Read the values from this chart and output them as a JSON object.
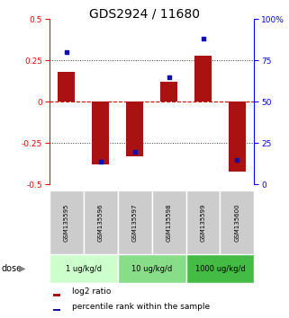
{
  "title": "GDS2924 / 11680",
  "samples": [
    "GSM135595",
    "GSM135596",
    "GSM135597",
    "GSM135598",
    "GSM135599",
    "GSM135600"
  ],
  "log2_ratio": [
    0.18,
    -0.38,
    -0.33,
    0.12,
    0.28,
    -0.42
  ],
  "percentile": [
    80,
    14,
    20,
    65,
    88,
    15
  ],
  "ylim_left": [
    -0.5,
    0.5
  ],
  "ylim_right": [
    0,
    100
  ],
  "yticks_left": [
    -0.5,
    -0.25,
    0,
    0.25,
    0.5
  ],
  "ytick_labels_left": [
    "-0.5",
    "-0.25",
    "0",
    "0.25",
    "0.5"
  ],
  "yticks_right": [
    0,
    25,
    50,
    75,
    100
  ],
  "ytick_labels_right": [
    "0",
    "25",
    "50",
    "75",
    "100%"
  ],
  "bar_color": "#AA1111",
  "dot_color": "#1111AA",
  "dose_groups": [
    {
      "label": "1 ug/kg/d",
      "samples": [
        0,
        1
      ],
      "color": "#ccffcc"
    },
    {
      "label": "10 ug/kg/d",
      "samples": [
        2,
        3
      ],
      "color": "#88dd88"
    },
    {
      "label": "1000 ug/kg/d",
      "samples": [
        4,
        5
      ],
      "color": "#44bb44"
    }
  ],
  "dose_label": "dose",
  "legend_log2": "log2 ratio",
  "legend_pct": "percentile rank within the sample",
  "bar_color_r": "#AA1111",
  "dot_color_b": "#1111AA",
  "zero_line_color": "#cc0000",
  "grid_dotted_color": "#333333",
  "bg_sample_row": "#cccccc",
  "title_fontsize": 10,
  "tick_fontsize": 6.5,
  "label_fontsize": 6,
  "legend_fontsize": 6.5
}
